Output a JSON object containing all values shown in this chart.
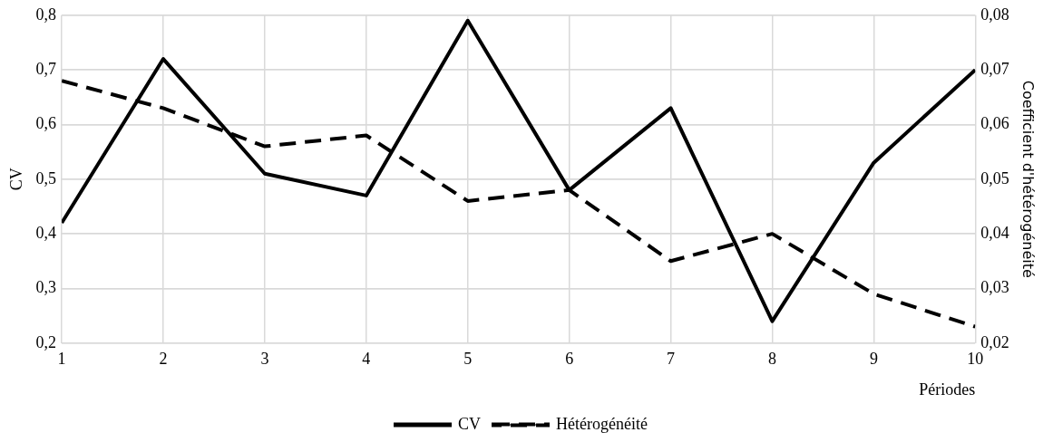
{
  "chart_data": {
    "type": "line",
    "xlabel": "Périodes",
    "ylabel": "CV",
    "y2label": "Coefficient d'hétérogénéité",
    "x": [
      1,
      2,
      3,
      4,
      5,
      6,
      7,
      8,
      9,
      10
    ],
    "xlim": [
      1,
      10
    ],
    "xticks": [
      1,
      2,
      3,
      4,
      5,
      6,
      7,
      8,
      9,
      10
    ],
    "ylim": [
      0.2,
      0.8
    ],
    "yticks": [
      {
        "value": 0.2,
        "label": "0,2"
      },
      {
        "value": 0.3,
        "label": "0,3"
      },
      {
        "value": 0.4,
        "label": "0,4"
      },
      {
        "value": 0.5,
        "label": "0,5"
      },
      {
        "value": 0.6,
        "label": "0,6"
      },
      {
        "value": 0.7,
        "label": "0,7"
      },
      {
        "value": 0.8,
        "label": "0,8"
      }
    ],
    "y2lim": [
      0.02,
      0.08
    ],
    "y2ticks": [
      {
        "value": 0.02,
        "label": "0,02"
      },
      {
        "value": 0.03,
        "label": "0,03"
      },
      {
        "value": 0.04,
        "label": "0,04"
      },
      {
        "value": 0.05,
        "label": "0,05"
      },
      {
        "value": 0.06,
        "label": "0,06"
      },
      {
        "value": 0.07,
        "label": "0,07"
      },
      {
        "value": 0.08,
        "label": "0,08"
      }
    ],
    "grid": true,
    "legend": "bottom",
    "marker": "none",
    "series": [
      {
        "name": "CV",
        "color": "#000000",
        "line_style": "solid",
        "values": [
          0.42,
          0.72,
          0.51,
          0.47,
          0.79,
          0.48,
          0.63,
          0.24,
          0.53,
          0.7
        ]
      },
      {
        "name": "Hétérogénéité",
        "color": "#000000",
        "line_style": "dashed",
        "axis": "y2",
        "values": [
          0.068,
          0.063,
          0.056,
          0.058,
          0.046,
          0.048,
          0.035,
          0.04,
          0.029,
          0.023
        ]
      }
    ]
  }
}
